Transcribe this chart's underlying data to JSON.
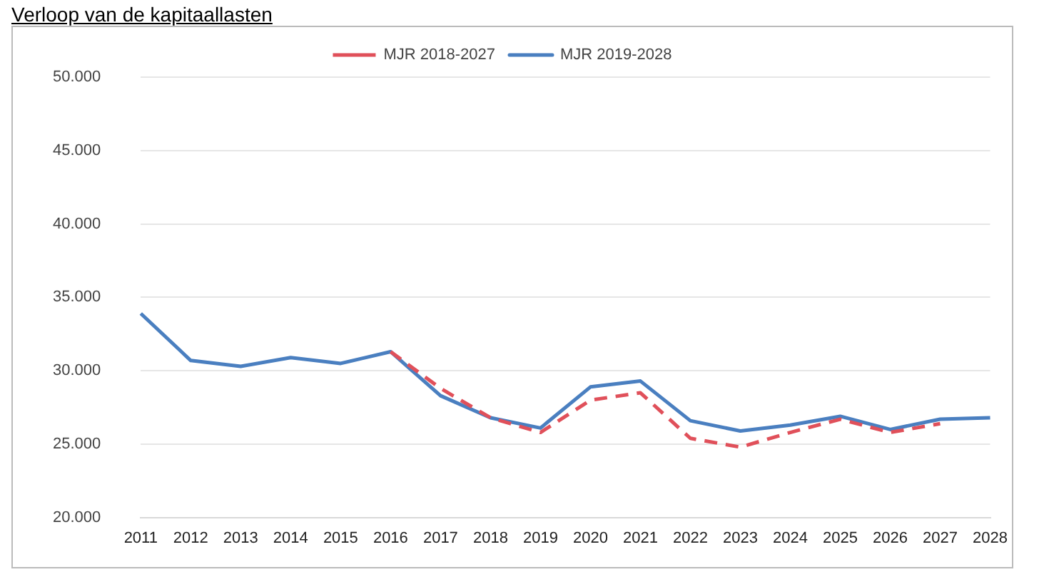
{
  "chart_data": {
    "type": "line",
    "title": "Verloop van de kapitaallasten",
    "categories": [
      "2011",
      "2012",
      "2013",
      "2014",
      "2015",
      "2016",
      "2017",
      "2018",
      "2019",
      "2020",
      "2021",
      "2022",
      "2023",
      "2024",
      "2025",
      "2026",
      "2027",
      "2028"
    ],
    "series": [
      {
        "name": "MJR 2018-2027",
        "color": "#e0505a",
        "line_style": "dashed",
        "values": [
          null,
          null,
          null,
          null,
          null,
          31300,
          28800,
          26800,
          25800,
          28000,
          28500,
          25400,
          24800,
          25800,
          26700,
          25800,
          26400,
          null
        ]
      },
      {
        "name": "MJR 2019-2028",
        "color": "#4a7fc0",
        "line_style": "solid",
        "values": [
          33900,
          30700,
          30300,
          30900,
          30500,
          31300,
          28300,
          26800,
          26100,
          28900,
          29300,
          26600,
          25900,
          26300,
          26900,
          26000,
          26700,
          26800
        ]
      }
    ],
    "ylim": [
      20000,
      50000
    ],
    "yticks": [
      {
        "value": 20000,
        "label": "20.000"
      },
      {
        "value": 25000,
        "label": "25.000"
      },
      {
        "value": 30000,
        "label": "30.000"
      },
      {
        "value": 35000,
        "label": "35.000"
      },
      {
        "value": 40000,
        "label": "40.000"
      },
      {
        "value": 45000,
        "label": "45.000"
      },
      {
        "value": 50000,
        "label": "50.000"
      }
    ],
    "grid": "y",
    "legend": "top",
    "marker": "none"
  }
}
